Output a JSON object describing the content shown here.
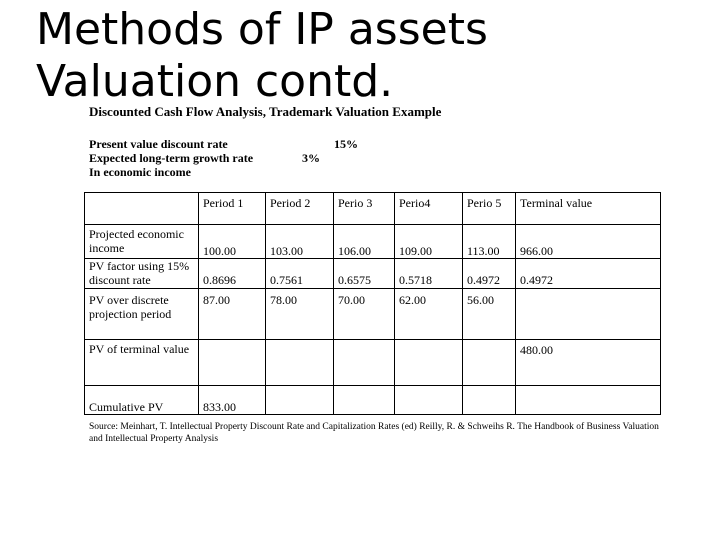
{
  "slide": {
    "title": "Methods of IP assets Valuation contd."
  },
  "figure": {
    "title": "Discounted Cash Flow Analysis, Trademark Valuation Example",
    "params": {
      "discount_label": "Present value discount rate",
      "discount_value": "15%",
      "growth_label": "Expected long-term growth rate",
      "growth_value": "3%",
      "growth_label2": "In economic income"
    },
    "table": {
      "headers": [
        "",
        "Period 1",
        "Period 2",
        "Perio 3",
        "Perio4",
        "Perio 5",
        "Terminal value"
      ],
      "projected_label": "Projected economic income",
      "projected": [
        "100.00",
        "103.00",
        "106.00",
        "109.00",
        "113.00",
        "966.00"
      ],
      "pv_factor_label": "PV factor using 15% discount rate",
      "pv_factor": [
        "0.8696",
        "0.7561",
        "0.6575",
        "0.5718",
        "0.4972",
        "0.4972"
      ],
      "pv_discrete_label": "PV over discrete projection period",
      "pv_discrete": [
        "87.00",
        "78.00",
        "70.00",
        "62.00",
        "56.00",
        ""
      ],
      "pv_terminal_label": "PV of terminal value",
      "pv_terminal": [
        "",
        "",
        "",
        "",
        "",
        "480.00"
      ],
      "cumulative_label": "Cumulative PV",
      "cumulative": [
        "833.00",
        "",
        "",
        "",
        "",
        ""
      ]
    },
    "source": "Source: Meinhart, T. Intellectual Property Discount Rate and Capitalization Rates (ed) Reilly, R. & Schweihs R. The Handbook of Business Valuation and Intellectual Property Analysis"
  }
}
